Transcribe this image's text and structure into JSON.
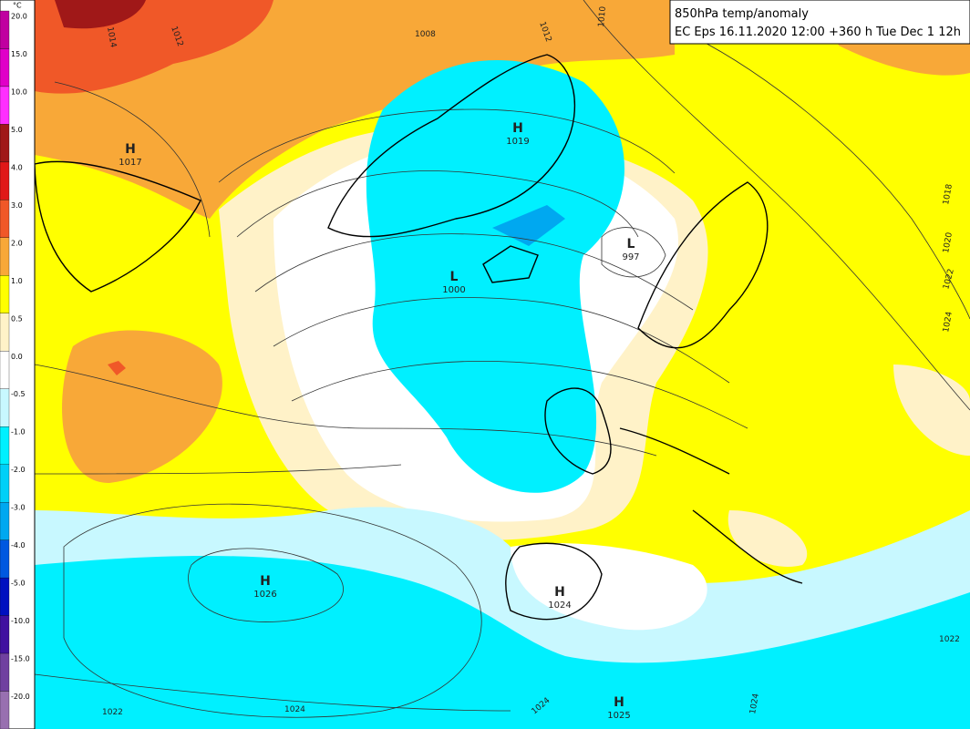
{
  "legend": {
    "unit": "°C",
    "items": [
      {
        "label": "20.0",
        "color": "#c000a0"
      },
      {
        "label": "15.0",
        "color": "#e000c8"
      },
      {
        "label": "10.0",
        "color": "#ff30ff"
      },
      {
        "label": "5.0",
        "color": "#a01818"
      },
      {
        "label": "4.0",
        "color": "#e01818"
      },
      {
        "label": "3.0",
        "color": "#f05828"
      },
      {
        "label": "2.0",
        "color": "#f8a838"
      },
      {
        "label": "1.0",
        "color": "#ffff00"
      },
      {
        "label": "0.5",
        "color": "#fff2c8"
      },
      {
        "label": "0.0",
        "color": "#ffffff"
      },
      {
        "label": "-0.5",
        "color": "#c8f8ff"
      },
      {
        "label": "-1.0",
        "color": "#00f0ff"
      },
      {
        "label": "-2.0",
        "color": "#00d0f8"
      },
      {
        "label": "-3.0",
        "color": "#00a8f0"
      },
      {
        "label": "-4.0",
        "color": "#0058e0"
      },
      {
        "label": "-5.0",
        "color": "#0010c0"
      },
      {
        "label": "-10.0",
        "color": "#4010a0"
      },
      {
        "label": "-15.0",
        "color": "#7040a0"
      },
      {
        "label": "-20.0",
        "color": "#9870b0"
      }
    ]
  },
  "header": {
    "title": "850hPa temp/anomaly",
    "subtitle": "EC Eps 16.11.2020 12:00 +360 h Tue Dec 1 12h"
  },
  "centers": [
    {
      "type": "H",
      "value": 1017
    },
    {
      "type": "H",
      "value": 1019
    },
    {
      "type": "L",
      "value": 997
    },
    {
      "type": "L",
      "value": 1000
    },
    {
      "type": "H",
      "value": 1026
    },
    {
      "type": "H",
      "value": 1024
    },
    {
      "type": "H",
      "value": 1025
    }
  ],
  "isobar_labels": [
    1014,
    1012,
    1008,
    1012,
    1010,
    1018,
    1020,
    1022,
    1024,
    1022,
    1022,
    1024,
    1024,
    1024
  ]
}
